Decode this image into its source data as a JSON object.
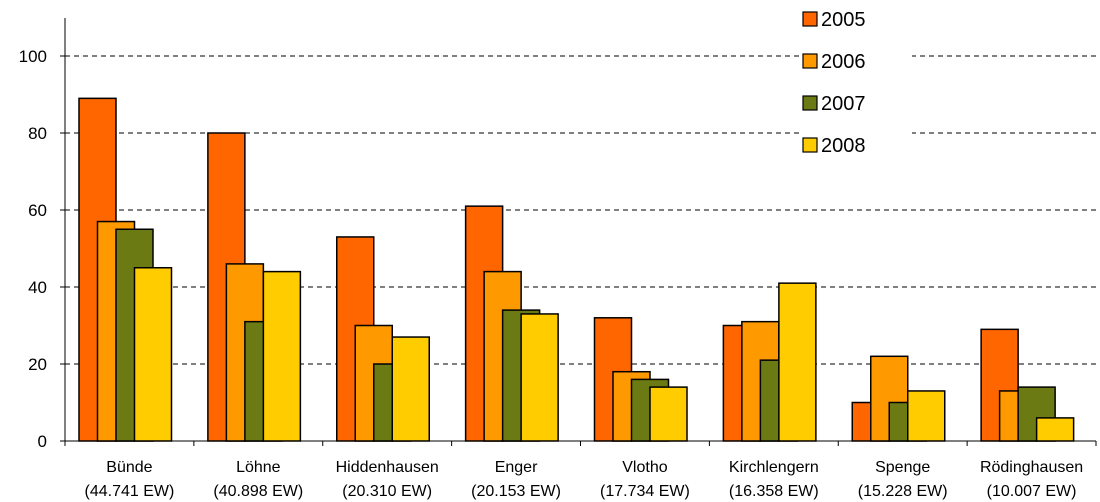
{
  "chart_data": {
    "type": "bar",
    "categories": [
      [
        "Bünde",
        "(44.741 EW)"
      ],
      [
        "Löhne",
        "(40.898 EW)"
      ],
      [
        "Hiddenhausen",
        "(20.310 EW)"
      ],
      [
        "Enger",
        "(20.153 EW)"
      ],
      [
        "Vlotho",
        "(17.734 EW)"
      ],
      [
        "Kirchlengern",
        "(16.358 EW)"
      ],
      [
        "Spenge",
        "(15.228 EW)"
      ],
      [
        "Rödinghausen",
        "(10.007 EW)"
      ]
    ],
    "series": [
      {
        "name": "2005",
        "color": "#ff6600",
        "values": [
          89,
          80,
          53,
          61,
          32,
          30,
          10,
          29
        ]
      },
      {
        "name": "2006",
        "color": "#ff9900",
        "values": [
          57,
          46,
          30,
          44,
          18,
          31,
          22,
          13
        ]
      },
      {
        "name": "2007",
        "color": "#6b7a12",
        "values": [
          55,
          31,
          20,
          34,
          16,
          21,
          10,
          14
        ]
      },
      {
        "name": "2008",
        "color": "#ffcc00",
        "values": [
          45,
          44,
          27,
          33,
          14,
          41,
          13,
          6
        ]
      }
    ],
    "ylim": [
      0,
      100
    ],
    "yticks": [
      0,
      20,
      40,
      60,
      80,
      100
    ],
    "grid": true,
    "legend_position": "top-right"
  }
}
